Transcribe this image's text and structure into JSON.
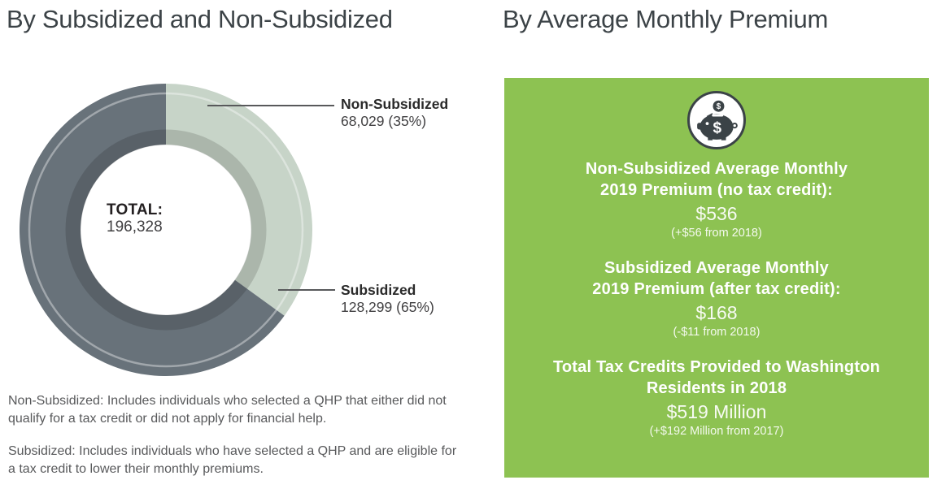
{
  "left_panel": {
    "title": "By Subsidized and Non-Subsidized",
    "center": {
      "label": "TOTAL:",
      "value": "196,328"
    },
    "footnotes": [
      "Non-Subsidized: Includes individuals who selected a QHP that either did not qualify for a tax credit or did not apply for financial help.",
      "Subsidized: Includes individuals who have selected a QHP and are eligible for a tax credit to lower their monthly premiums."
    ]
  },
  "chart_data": {
    "type": "pie",
    "subtype": "donut",
    "title": "By Subsidized and Non-Subsidized",
    "start_angle": "top",
    "direction": "clockwise",
    "total": 196328,
    "total_display": "196,328",
    "slices": [
      {
        "label": "Non-Subsidized",
        "value": 68029,
        "percent": 35,
        "display": "68,029 (35%)",
        "color": "#c7d4c8"
      },
      {
        "label": "Subsidized",
        "value": 128299,
        "percent": 65,
        "display": "128,299 (65%)",
        "color": "#68727a"
      }
    ]
  },
  "right_panel": {
    "title": "By Average Monthly Premium",
    "background_color": "#8dc252",
    "icon": "piggy-bank-icon",
    "sections": [
      {
        "heading_line1": "Non-Subsidized Average Monthly",
        "heading_line2": "2019 Premium (no tax credit):",
        "value": "$536",
        "change": "(+$56 from 2018)"
      },
      {
        "heading_line1": "Subsidized Average Monthly",
        "heading_line2": "2019 Premium (after tax credit):",
        "value": "$168",
        "change": "(-$11 from 2018)"
      },
      {
        "heading_line1": "Total Tax Credits Provided to Washington",
        "heading_line2": "Residents in 2018",
        "value": "$519 Million",
        "change": "(+$192 Million from 2017)"
      }
    ]
  }
}
